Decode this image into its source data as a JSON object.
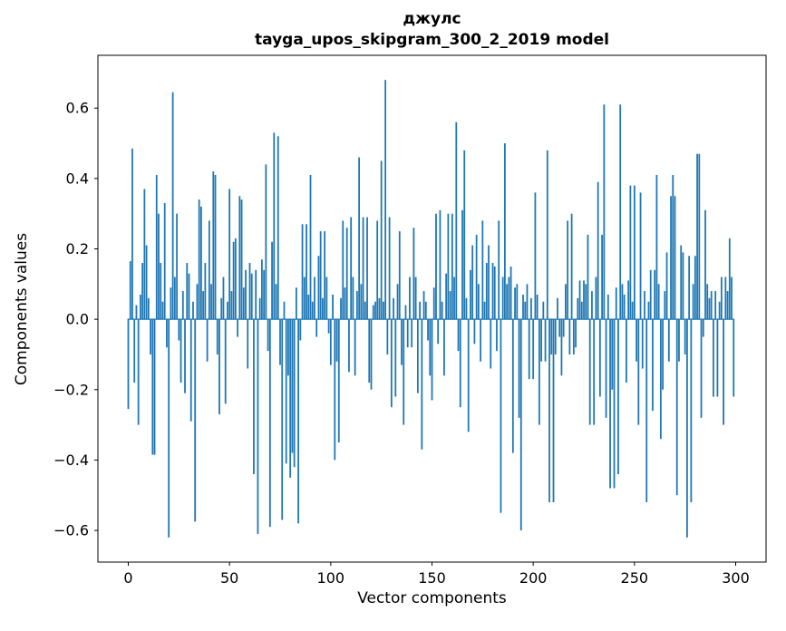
{
  "title": {
    "line1": "джулс",
    "line2": "tayga_upos_skipgram_300_2_2019 model"
  },
  "chart_data": {
    "type": "bar",
    "title": "джулс\ntayga_upos_skipgram_300_2_2019 model",
    "xlabel": "Vector components",
    "ylabel": "Components values",
    "xlim": [
      -15,
      315
    ],
    "ylim": [
      -0.69,
      0.75
    ],
    "x_ticks": [
      0,
      50,
      100,
      150,
      200,
      250,
      300
    ],
    "y_ticks": [
      -0.6,
      -0.4,
      -0.2,
      0.0,
      0.2,
      0.4,
      0.6
    ],
    "bar_color": "#1f77b4",
    "grid": false,
    "legend": "none",
    "n_components": 300,
    "values": [
      -0.255,
      0.165,
      0.485,
      -0.18,
      0.04,
      -0.3,
      0.07,
      0.16,
      0.37,
      0.21,
      0.06,
      -0.1,
      -0.385,
      -0.385,
      0.41,
      0.3,
      0.16,
      0.05,
      0.33,
      -0.08,
      -0.62,
      0.09,
      0.645,
      0.12,
      0.3,
      -0.06,
      -0.18,
      0.08,
      -0.21,
      0.16,
      0.13,
      -0.29,
      0.05,
      -0.575,
      0.1,
      0.34,
      0.32,
      0.08,
      0.16,
      -0.12,
      0.28,
      0.1,
      0.42,
      0.41,
      -0.1,
      -0.27,
      0.06,
      0.12,
      -0.24,
      0.05,
      0.37,
      0.08,
      0.22,
      0.23,
      -0.05,
      0.35,
      0.34,
      0.09,
      0.14,
      -0.14,
      0.16,
      0.13,
      -0.44,
      0.14,
      -0.61,
      0.06,
      0.17,
      0.14,
      0.44,
      -0.09,
      -0.59,
      0.22,
      0.53,
      0.1,
      0.52,
      -0.13,
      -0.57,
      0.05,
      -0.41,
      -0.16,
      -0.45,
      -0.38,
      -0.42,
      0.09,
      -0.58,
      -0.06,
      0.27,
      0.12,
      0.27,
      0.07,
      0.41,
      0.05,
      0.12,
      -0.05,
      0.18,
      0.25,
      0.06,
      0.25,
      0.12,
      -0.04,
      -0.13,
      0.07,
      -0.4,
      -0.12,
      -0.35,
      0.06,
      0.28,
      0.09,
      0.26,
      -0.15,
      0.29,
      0.12,
      -0.16,
      0.08,
      0.46,
      0.1,
      0.29,
      0.05,
      0.29,
      -0.18,
      -0.2,
      0.04,
      0.05,
      0.28,
      0.06,
      0.45,
      0.05,
      0.68,
      -0.1,
      0.29,
      -0.25,
      0.06,
      -0.22,
      0.1,
      0.25,
      -0.13,
      -0.3,
      0.04,
      -0.08,
      0.12,
      -0.08,
      0.26,
      0.12,
      -0.21,
      0.05,
      -0.37,
      0.08,
      0.05,
      -0.06,
      -0.16,
      -0.23,
      0.09,
      0.3,
      -0.07,
      0.31,
      0.05,
      -0.16,
      0.13,
      0.3,
      0.08,
      0.3,
      0.12,
      0.56,
      -0.09,
      -0.25,
      0.31,
      0.48,
      0.06,
      -0.32,
      0.14,
      0.21,
      -0.07,
      0.24,
      0.1,
      -0.12,
      0.28,
      0.05,
      0.16,
      0.21,
      -0.14,
      0.16,
      0.15,
      -0.09,
      0.28,
      -0.55,
      0.12,
      0.5,
      0.1,
      0.12,
      0.15,
      -0.38,
      0.09,
      0.1,
      -0.28,
      -0.6,
      0.07,
      0.05,
      0.1,
      -0.17,
      0.06,
      -0.17,
      0.36,
      0.07,
      -0.3,
      -0.12,
      0.05,
      -0.12,
      0.48,
      -0.52,
      -0.1,
      -0.52,
      -0.1,
      0.06,
      -0.05,
      -0.16,
      -0.05,
      0.1,
      0.28,
      -0.1,
      0.3,
      -0.1,
      -0.08,
      0.06,
      0.11,
      0.05,
      0.11,
      0.1,
      0.24,
      -0.3,
      0.08,
      -0.3,
      0.12,
      0.39,
      -0.22,
      0.24,
      0.61,
      -0.28,
      0.07,
      -0.48,
      -0.2,
      -0.48,
      0.09,
      -0.44,
      0.61,
      0.1,
      0.07,
      -0.18,
      0.11,
      0.38,
      0.05,
      0.38,
      -0.12,
      -0.3,
      0.36,
      -0.14,
      0.08,
      -0.52,
      0.05,
      0.14,
      -0.26,
      0.14,
      0.41,
      0.1,
      -0.34,
      -0.2,
      0.08,
      0.19,
      -0.12,
      0.35,
      0.41,
      0.35,
      -0.5,
      -0.12,
      0.21,
      0.19,
      -0.1,
      -0.62,
      0.18,
      -0.52,
      0.1,
      0.18,
      0.47,
      0.47,
      -0.28,
      -0.05,
      0.31,
      0.1,
      0.06,
      0.08,
      -0.22,
      0.08,
      -0.22,
      0.05,
      0.12,
      -0.3,
      0.12,
      0.08,
      0.23,
      0.12,
      -0.22
    ]
  }
}
